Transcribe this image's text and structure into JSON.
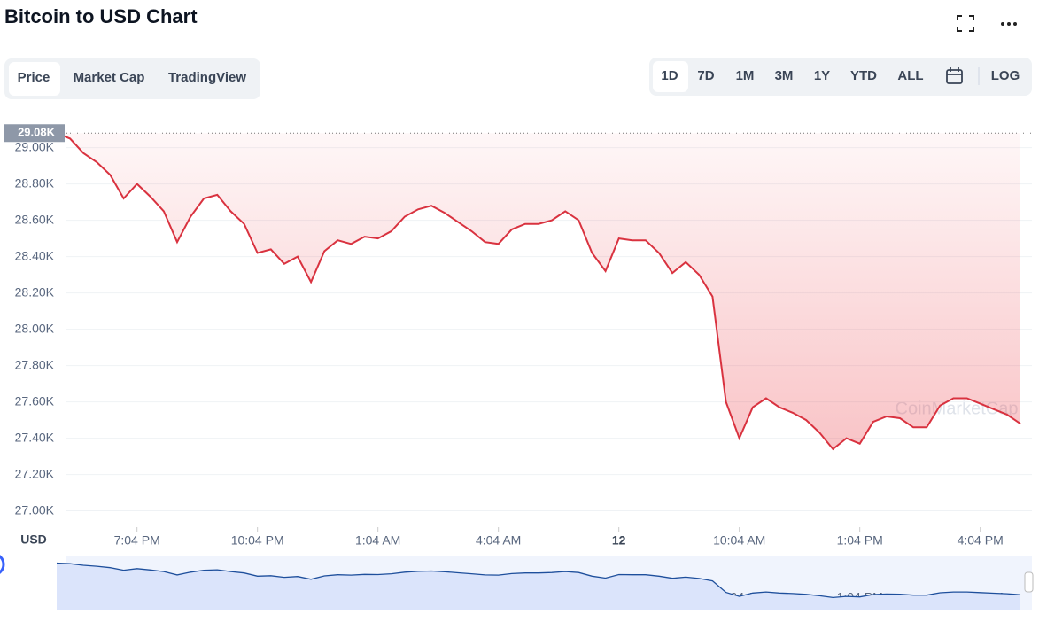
{
  "header": {
    "title": "Bitcoin to USD Chart"
  },
  "tabs": [
    "Price",
    "Market Cap",
    "TradingView"
  ],
  "ranges": [
    "1D",
    "7D",
    "1M",
    "3M",
    "1Y",
    "YTD",
    "ALL"
  ],
  "log": "LOG",
  "watermark": "CoinMarketCap",
  "chart_data": {
    "type": "line",
    "y_label": "USD",
    "current_label": "29.08K",
    "color": "#d9323f",
    "values": [
      29080,
      29050,
      28970,
      28920,
      28850,
      28720,
      28800,
      28730,
      28650,
      28480,
      28620,
      28720,
      28740,
      28650,
      28580,
      28420,
      28440,
      28360,
      28400,
      28260,
      28430,
      28490,
      28470,
      28510,
      28500,
      28540,
      28620,
      28660,
      28680,
      28640,
      28590,
      28540,
      28480,
      28470,
      28550,
      28580,
      28580,
      28600,
      28650,
      28600,
      28420,
      28320,
      28500,
      28490,
      28490,
      28420,
      28310,
      28370,
      28300,
      28180,
      27600,
      27400,
      27570,
      27620,
      27570,
      27540,
      27500,
      27430,
      27340,
      27400,
      27370,
      27490,
      27520,
      27510,
      27460,
      27460,
      27580,
      27620,
      27620,
      27590,
      27560,
      27530,
      27480
    ],
    "xlim": [
      0,
      72
    ],
    "xticks": [
      {
        "value": 6,
        "label": "7:04 PM"
      },
      {
        "value": 15,
        "label": "10:04 PM"
      },
      {
        "value": 24,
        "label": "1:04 AM"
      },
      {
        "value": 33,
        "label": "4:04 AM"
      },
      {
        "value": 42,
        "label": "12"
      },
      {
        "value": 51,
        "label": "10:04 AM"
      },
      {
        "value": 60,
        "label": "1:04 PM"
      },
      {
        "value": 69,
        "label": "4:04 PM"
      }
    ],
    "ylim": [
      26910,
      29130
    ],
    "yticks": [
      {
        "value": 27000,
        "label": "27.00K"
      },
      {
        "value": 27200,
        "label": "27.20K"
      },
      {
        "value": 27400,
        "label": "27.40K"
      },
      {
        "value": 27600,
        "label": "27.60K"
      },
      {
        "value": 27800,
        "label": "27.80K"
      },
      {
        "value": 28000,
        "label": "28.00K"
      },
      {
        "value": 28200,
        "label": "28.20K"
      },
      {
        "value": 28400,
        "label": "28.40K"
      },
      {
        "value": 28600,
        "label": "28.60K"
      },
      {
        "value": 28800,
        "label": "28.80K"
      },
      {
        "value": 29000,
        "label": "29.00K"
      }
    ],
    "grid": true
  }
}
